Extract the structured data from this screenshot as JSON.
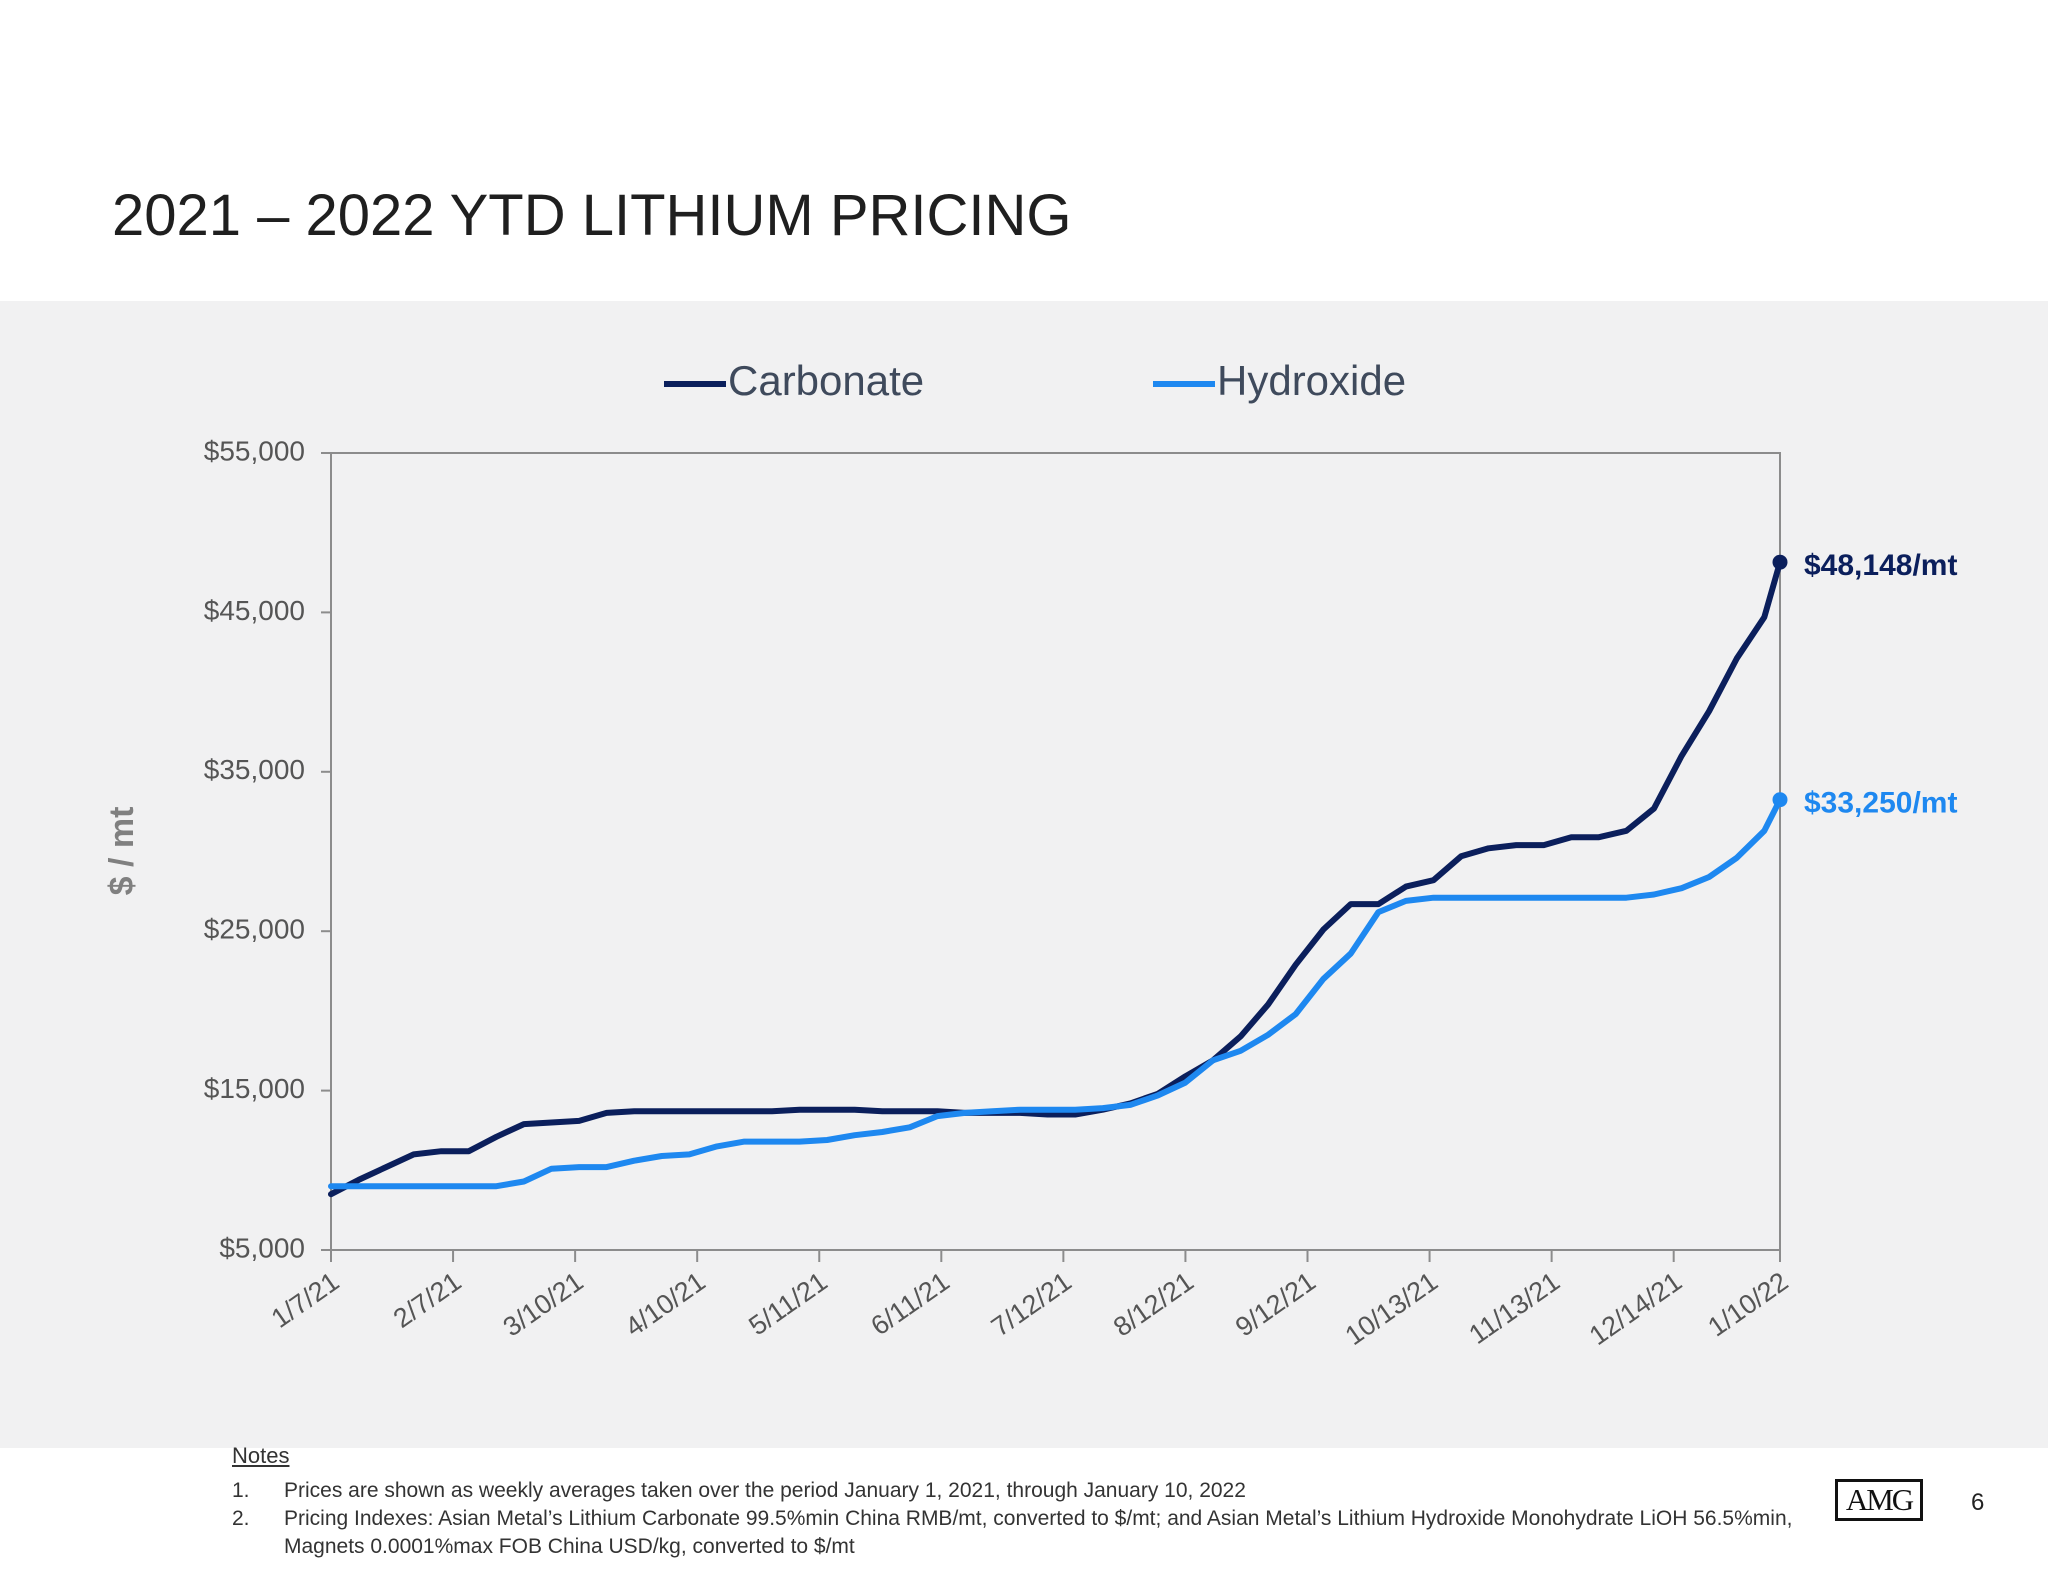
{
  "slide": {
    "title": "2021 – 2022 YTD LITHIUM PRICING",
    "page_number": "6",
    "logo_text": "AMG"
  },
  "notes": {
    "heading": "Notes",
    "items": [
      {
        "num": "1.",
        "text": "Prices are shown as weekly averages taken over the period January 1, 2021, through January 10, 2022"
      },
      {
        "num": "2.",
        "text": "Pricing Indexes: Asian Metal’s Lithium Carbonate 99.5%min China RMB/mt, converted to $/mt; and Asian Metal’s Lithium Hydroxide Monohydrate LiOH 56.5%min, Magnets 0.0001%max FOB China USD/kg, converted to $/mt"
      }
    ]
  },
  "chart_data": {
    "type": "line",
    "ylabel": "$ / mt",
    "ylim": [
      5000,
      55000
    ],
    "yticks": [
      5000,
      15000,
      25000,
      35000,
      45000,
      55000
    ],
    "ytick_labels": [
      "$5,000",
      "$15,000",
      "$25,000",
      "$35,000",
      "$45,000",
      "$55,000"
    ],
    "xlim": [
      "2021-01-07",
      "2022-01-10"
    ],
    "xticks": [
      "2021-01-07",
      "2021-02-07",
      "2021-03-10",
      "2021-04-10",
      "2021-05-11",
      "2021-06-11",
      "2021-07-12",
      "2021-08-12",
      "2021-09-12",
      "2021-10-13",
      "2021-11-13",
      "2021-12-14",
      "2022-01-10"
    ],
    "xtick_labels": [
      "1/7/21",
      "2/7/21",
      "3/10/21",
      "4/10/21",
      "5/11/21",
      "6/11/21",
      "7/12/21",
      "8/12/21",
      "9/12/21",
      "10/13/21",
      "11/13/21",
      "12/14/21",
      "1/10/22"
    ],
    "legend_position": "top",
    "grid": false,
    "series": [
      {
        "name": "Carbonate",
        "color": "#0b1f5c",
        "end_label": "$48,148/mt",
        "points": [
          [
            "2021-01-07",
            8500
          ],
          [
            "2021-01-14",
            9400
          ],
          [
            "2021-01-21",
            10200
          ],
          [
            "2021-01-28",
            11000
          ],
          [
            "2021-02-04",
            11200
          ],
          [
            "2021-02-11",
            11200
          ],
          [
            "2021-02-18",
            12100
          ],
          [
            "2021-02-25",
            12900
          ],
          [
            "2021-03-04",
            13000
          ],
          [
            "2021-03-11",
            13100
          ],
          [
            "2021-03-18",
            13600
          ],
          [
            "2021-03-25",
            13700
          ],
          [
            "2021-04-01",
            13700
          ],
          [
            "2021-04-08",
            13700
          ],
          [
            "2021-04-15",
            13700
          ],
          [
            "2021-04-22",
            13700
          ],
          [
            "2021-04-29",
            13700
          ],
          [
            "2021-05-06",
            13800
          ],
          [
            "2021-05-13",
            13800
          ],
          [
            "2021-05-20",
            13800
          ],
          [
            "2021-05-27",
            13700
          ],
          [
            "2021-06-03",
            13700
          ],
          [
            "2021-06-10",
            13700
          ],
          [
            "2021-06-17",
            13600
          ],
          [
            "2021-06-24",
            13600
          ],
          [
            "2021-07-01",
            13600
          ],
          [
            "2021-07-08",
            13500
          ],
          [
            "2021-07-15",
            13500
          ],
          [
            "2021-07-22",
            13800
          ],
          [
            "2021-07-29",
            14200
          ],
          [
            "2021-08-05",
            14800
          ],
          [
            "2021-08-12",
            15900
          ],
          [
            "2021-08-19",
            16900
          ],
          [
            "2021-08-26",
            18400
          ],
          [
            "2021-09-02",
            20400
          ],
          [
            "2021-09-09",
            22900
          ],
          [
            "2021-09-16",
            25100
          ],
          [
            "2021-09-23",
            26700
          ],
          [
            "2021-09-30",
            26700
          ],
          [
            "2021-10-07",
            27800
          ],
          [
            "2021-10-14",
            28200
          ],
          [
            "2021-10-21",
            29700
          ],
          [
            "2021-10-28",
            30200
          ],
          [
            "2021-11-04",
            30400
          ],
          [
            "2021-11-11",
            30400
          ],
          [
            "2021-11-18",
            30900
          ],
          [
            "2021-11-25",
            30900
          ],
          [
            "2021-12-02",
            31300
          ],
          [
            "2021-12-09",
            32700
          ],
          [
            "2021-12-16",
            36000
          ],
          [
            "2021-12-23",
            38800
          ],
          [
            "2021-12-30",
            42100
          ],
          [
            "2022-01-06",
            44700
          ],
          [
            "2022-01-10",
            48148
          ]
        ]
      },
      {
        "name": "Hydroxide",
        "color": "#1e88f0",
        "end_label": "$33,250/mt",
        "points": [
          [
            "2021-01-07",
            9000
          ],
          [
            "2021-01-14",
            9000
          ],
          [
            "2021-01-21",
            9000
          ],
          [
            "2021-01-28",
            9000
          ],
          [
            "2021-02-04",
            9000
          ],
          [
            "2021-02-11",
            9000
          ],
          [
            "2021-02-18",
            9000
          ],
          [
            "2021-02-25",
            9300
          ],
          [
            "2021-03-04",
            10100
          ],
          [
            "2021-03-11",
            10200
          ],
          [
            "2021-03-18",
            10200
          ],
          [
            "2021-03-25",
            10600
          ],
          [
            "2021-04-01",
            10900
          ],
          [
            "2021-04-08",
            11000
          ],
          [
            "2021-04-15",
            11500
          ],
          [
            "2021-04-22",
            11800
          ],
          [
            "2021-04-29",
            11800
          ],
          [
            "2021-05-06",
            11800
          ],
          [
            "2021-05-13",
            11900
          ],
          [
            "2021-05-20",
            12200
          ],
          [
            "2021-05-27",
            12400
          ],
          [
            "2021-06-03",
            12700
          ],
          [
            "2021-06-10",
            13400
          ],
          [
            "2021-06-17",
            13600
          ],
          [
            "2021-06-24",
            13700
          ],
          [
            "2021-07-01",
            13800
          ],
          [
            "2021-07-08",
            13800
          ],
          [
            "2021-07-15",
            13800
          ],
          [
            "2021-07-22",
            13900
          ],
          [
            "2021-07-29",
            14100
          ],
          [
            "2021-08-05",
            14700
          ],
          [
            "2021-08-12",
            15500
          ],
          [
            "2021-08-19",
            16900
          ],
          [
            "2021-08-26",
            17500
          ],
          [
            "2021-09-02",
            18500
          ],
          [
            "2021-09-09",
            19800
          ],
          [
            "2021-09-16",
            22000
          ],
          [
            "2021-09-23",
            23600
          ],
          [
            "2021-09-30",
            26200
          ],
          [
            "2021-10-07",
            26900
          ],
          [
            "2021-10-14",
            27100
          ],
          [
            "2021-10-21",
            27100
          ],
          [
            "2021-10-28",
            27100
          ],
          [
            "2021-11-04",
            27100
          ],
          [
            "2021-11-11",
            27100
          ],
          [
            "2021-11-18",
            27100
          ],
          [
            "2021-11-25",
            27100
          ],
          [
            "2021-12-02",
            27100
          ],
          [
            "2021-12-09",
            27300
          ],
          [
            "2021-12-16",
            27700
          ],
          [
            "2021-12-23",
            28400
          ],
          [
            "2021-12-30",
            29600
          ],
          [
            "2022-01-06",
            31300
          ],
          [
            "2022-01-10",
            33250
          ]
        ]
      }
    ]
  }
}
